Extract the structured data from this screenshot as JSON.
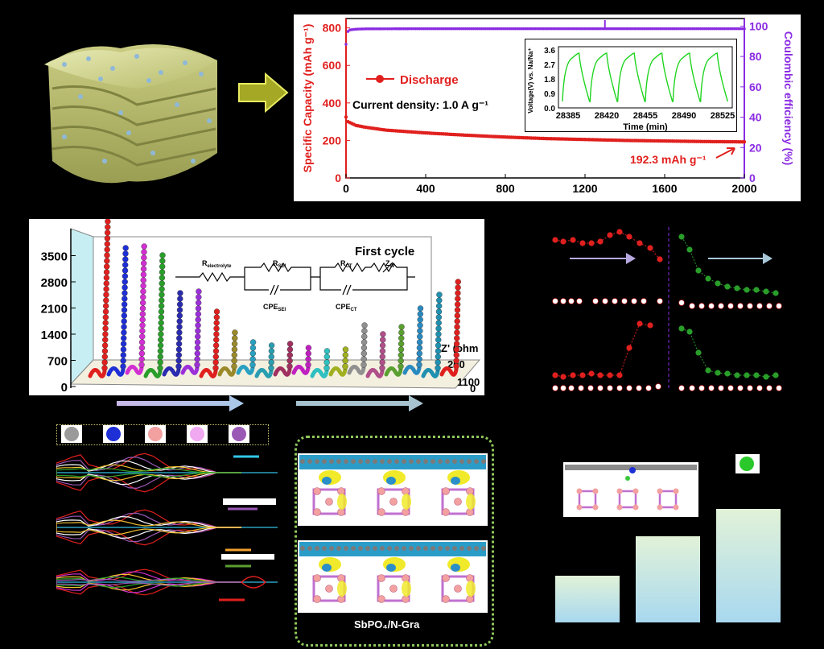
{
  "figure": {
    "panel_a": {
      "chart_data": {
        "type": "line",
        "ylabel_left": "Specific Capacity (mAh g⁻¹)",
        "ylabel_right": "Coulombic efficiency (%)",
        "xticks": [
          "0",
          "400",
          "800",
          "1200",
          "1600",
          "2000"
        ],
        "yticks_left": [
          "0",
          "200",
          "400",
          "600",
          "800"
        ],
        "yticks_right": [
          "0",
          "20",
          "40",
          "60",
          "80",
          "100"
        ],
        "xlim": [
          0,
          2000
        ],
        "ylim_left": [
          0,
          850
        ],
        "ylim_right": [
          0,
          105
        ],
        "series": [
          {
            "name": "Discharge",
            "color": "#e0201e",
            "x": [
              0,
              10,
              50,
              100,
              200,
              400,
              600,
              800,
              1000,
              1200,
              1400,
              1600,
              1800,
              2000
            ],
            "y": [
              325,
              300,
              280,
              270,
              255,
              240,
              228,
              218,
              210,
              205,
              200,
              197,
              194,
              192.3
            ]
          },
          {
            "color": "#8a2be2",
            "x": [
              0,
              5,
              20,
              50,
              100,
              400,
              800,
              1200,
              1300,
              1310,
              1600,
              2000
            ],
            "y": [
              88,
              96,
              97.5,
              98,
              98.2,
              98.3,
              98.3,
              98.3,
              98.3,
              98.3,
              98.3,
              98.3
            ]
          }
        ],
        "legend": "Discharge",
        "annotations": [
          "Current density: 1.0 A g⁻¹",
          "192.3 mAh g⁻¹"
        ]
      },
      "inset": {
        "chart_data": {
          "type": "line",
          "ylabel": "Voltage(V) vs. Na/Na⁺",
          "xlabel": "Time (min)",
          "xticks": [
            "28385",
            "28420",
            "28455",
            "28490",
            "28525"
          ],
          "yticks": [
            "0.0",
            "0.9",
            "1.8",
            "2.7",
            "3.6"
          ],
          "cycles": 6,
          "color": "#1ed41e"
        }
      }
    },
    "panel_b": {
      "title": "First cycle",
      "xlabel": "Z' (ohm",
      "yticks": [
        "0",
        "700",
        "1400",
        "2100",
        "2800",
        "3500"
      ],
      "depth_ticks": [
        "0",
        "1100",
        "200"
      ],
      "circuit_labels": [
        "R_electrolyte",
        "R_SEI",
        "R_CT",
        "Z_W",
        "CPE_SEI",
        "CPE_CT"
      ],
      "circuit_labels_display": {
        "r_electrolyte": "R",
        "r_electrolyte_sub": "electrolyte",
        "r_sei": "R",
        "r_sei_sub": "SEI",
        "r_ct": "R",
        "r_ct_sub": "CT",
        "zw": "Z",
        "zw_sub": "W",
        "cpe_sei": "CPE",
        "cpe_sei_sub": "SEI",
        "cpe_ct": "CPE",
        "cpe_ct_sub": "CT"
      }
    },
    "panel_d": {
      "legend_colors": [
        "#9a9a9a",
        "#1e2fd6",
        "#f2a0a0",
        "#f0a8f0",
        "#9b59b6"
      ]
    },
    "panel_e": {
      "bottom_label": "SbPO₄/N-Gra"
    }
  }
}
